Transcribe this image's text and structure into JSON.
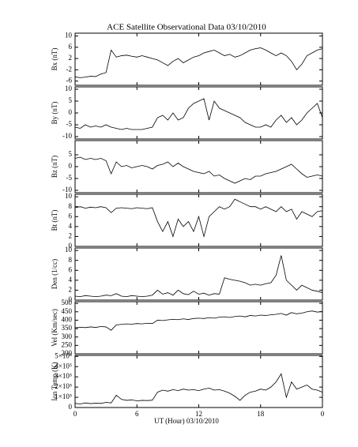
{
  "title": "ACE Satellite Observational Data   03/10/2010",
  "xlabel": "UT (Hour)   03/10/2010",
  "xlim": [
    0,
    24
  ],
  "xticks": [
    0,
    6,
    12,
    18,
    {
      "value": 24,
      "label": "0"
    }
  ],
  "chart_data": [
    {
      "type": "line",
      "ylabel": "Bx (nT)",
      "color": "#000000",
      "ylim": [
        -7.5,
        11
      ],
      "yticks": [
        -6,
        -2,
        2,
        6,
        10
      ],
      "x": [
        0,
        0.5,
        1,
        1.5,
        2,
        2.5,
        3,
        3.5,
        4,
        4.5,
        5,
        5.5,
        6,
        6.5,
        7,
        7.5,
        8,
        8.5,
        9,
        9.5,
        10,
        10.5,
        11,
        11.5,
        12,
        12.5,
        13,
        13.5,
        14,
        14.5,
        15,
        15.5,
        16,
        16.5,
        17,
        17.5,
        18,
        18.5,
        19,
        19.5,
        20,
        20.5,
        21,
        21.5,
        22,
        22.5,
        23,
        23.5,
        24
      ],
      "values": [
        -4.5,
        -4.8,
        -4.6,
        -4.3,
        -4.4,
        -3.5,
        -3,
        5,
        2.5,
        3,
        3.2,
        2.8,
        2.5,
        3,
        2.5,
        2,
        1.5,
        0.5,
        -0.5,
        1,
        2,
        0.5,
        1.5,
        2.5,
        3,
        4,
        4.5,
        5,
        4,
        3,
        3.5,
        2.5,
        3,
        4,
        5,
        5.5,
        5.8,
        5,
        4,
        3,
        4,
        3,
        1,
        -2,
        0,
        3,
        4,
        5,
        5.5
      ]
    },
    {
      "type": "line",
      "ylabel": "By (nT)",
      "color": "#000000",
      "ylim": [
        -11,
        11
      ],
      "yticks": [
        -10,
        -5,
        0,
        5,
        10
      ],
      "x": [
        0,
        0.5,
        1,
        1.5,
        2,
        2.5,
        3,
        3.5,
        4,
        4.5,
        5,
        5.5,
        6,
        6.5,
        7,
        7.5,
        8,
        8.5,
        9,
        9.5,
        10,
        10.5,
        11,
        11.5,
        12,
        12.5,
        13,
        13.5,
        14,
        14.5,
        15,
        15.5,
        16,
        16.5,
        17,
        17.5,
        18,
        18.5,
        19,
        19.5,
        20,
        20.5,
        21,
        21.5,
        22,
        22.5,
        23,
        23.5,
        24
      ],
      "values": [
        -6,
        -6.5,
        -5,
        -6,
        -5.5,
        -6,
        -5,
        -6,
        -6.5,
        -7,
        -6.5,
        -7,
        -7,
        -7,
        -6.5,
        -6,
        -2,
        -1,
        -3,
        0,
        -3,
        -2,
        2,
        4,
        5,
        6,
        -3,
        5,
        2,
        1,
        0,
        -1,
        -2,
        -4,
        -5,
        -6,
        -6,
        -5,
        -6,
        -3,
        -1,
        -4,
        -2,
        -5,
        -3,
        0,
        2,
        4,
        -2
      ]
    },
    {
      "type": "line",
      "ylabel": "Bz (nT)",
      "color": "#000000",
      "ylim": [
        -11,
        11
      ],
      "yticks": [
        -10,
        -5,
        0,
        5
      ],
      "x": [
        0,
        0.5,
        1,
        1.5,
        2,
        2.5,
        3,
        3.5,
        4,
        4.5,
        5,
        5.5,
        6,
        6.5,
        7,
        7.5,
        8,
        8.5,
        9,
        9.5,
        10,
        10.5,
        11,
        11.5,
        12,
        12.5,
        13,
        13.5,
        14,
        14.5,
        15,
        15.5,
        16,
        16.5,
        17,
        17.5,
        18,
        18.5,
        19,
        19.5,
        20,
        20.5,
        21,
        21.5,
        22,
        22.5,
        23,
        23.5,
        24
      ],
      "values": [
        3.5,
        4,
        3,
        3.5,
        3,
        3.5,
        2.5,
        -3,
        2,
        0,
        0.5,
        -0.5,
        0,
        0.5,
        0,
        -1,
        0.5,
        1,
        2,
        0,
        1.5,
        0,
        -1,
        -2,
        -2.5,
        -3,
        -2,
        -4,
        -3.5,
        -5,
        -6,
        -7,
        -6,
        -5,
        -5.5,
        -4,
        -4,
        -3,
        -2.5,
        -2,
        -1,
        0,
        1,
        -1,
        -3,
        -4.5,
        -4,
        -3.5,
        -4
      ]
    },
    {
      "type": "line",
      "ylabel": "Bt (nT)",
      "color": "#000000",
      "ylim": [
        0,
        10.5
      ],
      "yticks": [
        0,
        2,
        4,
        6,
        8,
        10
      ],
      "x": [
        0,
        0.5,
        1,
        1.5,
        2,
        2.5,
        3,
        3.5,
        4,
        4.5,
        5,
        5.5,
        6,
        6.5,
        7,
        7.5,
        8,
        8.5,
        9,
        9.5,
        10,
        10.5,
        11,
        11.5,
        12,
        12.5,
        13,
        13.5,
        14,
        14.5,
        15,
        15.5,
        16,
        16.5,
        17,
        17.5,
        18,
        18.5,
        19,
        19.5,
        20,
        20.5,
        21,
        21.5,
        22,
        22.5,
        23,
        23.5,
        24
      ],
      "values": [
        7.8,
        8,
        7.7,
        7.9,
        7.8,
        8,
        7.8,
        6.8,
        7.7,
        7.8,
        7.7,
        7.6,
        7.8,
        7.7,
        7.6,
        7.8,
        5,
        3,
        5,
        2,
        5.5,
        4,
        5,
        3,
        6,
        2,
        6,
        7,
        8,
        7.5,
        8,
        9.5,
        9,
        8.5,
        8,
        8,
        7.5,
        8,
        7.5,
        7,
        8,
        7,
        7.5,
        5.5,
        7,
        6.5,
        6,
        7,
        7.2
      ]
    },
    {
      "type": "line",
      "ylabel": "Den (1/cc)",
      "color": "#000000",
      "ylim": [
        0,
        10.5
      ],
      "yticks": [
        0,
        2,
        4,
        6,
        8,
        10
      ],
      "x": [
        0,
        0.5,
        1,
        1.5,
        2,
        2.5,
        3,
        3.5,
        4,
        4.5,
        5,
        5.5,
        6,
        6.5,
        7,
        7.5,
        8,
        8.5,
        9,
        9.5,
        10,
        10.5,
        11,
        11.5,
        12,
        12.5,
        13,
        13.5,
        14,
        14.5,
        15,
        15.5,
        16,
        16.5,
        17,
        17.5,
        18,
        18.5,
        19,
        19.5,
        20,
        20.5,
        21,
        21.5,
        22,
        22.5,
        23,
        23.5,
        24
      ],
      "values": [
        0.8,
        0.7,
        0.9,
        0.8,
        0.7,
        0.8,
        1,
        0.9,
        1.3,
        0.8,
        0.7,
        0.9,
        0.8,
        0.7,
        0.8,
        1,
        2,
        1.2,
        1.5,
        1,
        2,
        1.3,
        1.1,
        1.8,
        1.2,
        1.4,
        1,
        1.3,
        1.2,
        4.5,
        4.2,
        4,
        3.8,
        3.5,
        3,
        3.2,
        3,
        3.3,
        3.5,
        5,
        9,
        4,
        3,
        2,
        3,
        2.5,
        2,
        1.8,
        1.5
      ]
    },
    {
      "type": "line",
      "ylabel": "Vel (Km/sec)",
      "color": "#000000",
      "ylim": [
        200,
        510
      ],
      "yticks": [
        200,
        250,
        300,
        350,
        400,
        450,
        500
      ],
      "x": [
        0,
        0.5,
        1,
        1.5,
        2,
        2.5,
        3,
        3.5,
        4,
        4.5,
        5,
        5.5,
        6,
        6.5,
        7,
        7.5,
        8,
        8.5,
        9,
        9.5,
        10,
        10.5,
        11,
        11.5,
        12,
        12.5,
        13,
        13.5,
        14,
        14.5,
        15,
        15.5,
        16,
        16.5,
        17,
        17.5,
        18,
        18.5,
        19,
        19.5,
        20,
        20.5,
        21,
        21.5,
        22,
        22.5,
        23,
        23.5,
        24
      ],
      "values": [
        355,
        358,
        356,
        360,
        357,
        362,
        360,
        340,
        372,
        375,
        378,
        376,
        380,
        378,
        382,
        380,
        400,
        398,
        402,
        405,
        403,
        408,
        404,
        410,
        412,
        410,
        415,
        412,
        418,
        420,
        416,
        422,
        425,
        420,
        428,
        425,
        430,
        428,
        432,
        435,
        440,
        430,
        445,
        438,
        442,
        450,
        455,
        448,
        452
      ]
    },
    {
      "type": "line",
      "ylabel": "Ion Temp (K)",
      "color": "#000000",
      "ylim": [
        0,
        510000
      ],
      "yticks": [
        0,
        {
          "value": 100000,
          "label": "1×10⁵"
        },
        {
          "value": 200000,
          "label": "2×10⁵"
        },
        {
          "value": 300000,
          "label": "3×10⁵"
        },
        {
          "value": 400000,
          "label": "4×10⁵"
        },
        {
          "value": 500000,
          "label": "5×10⁵"
        }
      ],
      "x": [
        0,
        0.5,
        1,
        1.5,
        2,
        2.5,
        3,
        3.5,
        4,
        4.5,
        5,
        5.5,
        6,
        6.5,
        7,
        7.5,
        8,
        8.5,
        9,
        9.5,
        10,
        10.5,
        11,
        11.5,
        12,
        12.5,
        13,
        13.5,
        14,
        14.5,
        15,
        15.5,
        16,
        16.5,
        17,
        17.5,
        18,
        18.5,
        19,
        19.5,
        20,
        20.5,
        21,
        21.5,
        22,
        22.5,
        23,
        23.5,
        24
      ],
      "values": [
        40000,
        35000,
        45000,
        38000,
        42000,
        40000,
        50000,
        45000,
        120000,
        80000,
        70000,
        75000,
        65000,
        70000,
        68000,
        72000,
        150000,
        170000,
        160000,
        175000,
        165000,
        180000,
        170000,
        175000,
        165000,
        180000,
        190000,
        170000,
        175000,
        160000,
        140000,
        110000,
        70000,
        120000,
        150000,
        160000,
        180000,
        170000,
        200000,
        250000,
        330000,
        100000,
        250000,
        180000,
        200000,
        220000,
        180000,
        170000,
        150000
      ]
    }
  ]
}
